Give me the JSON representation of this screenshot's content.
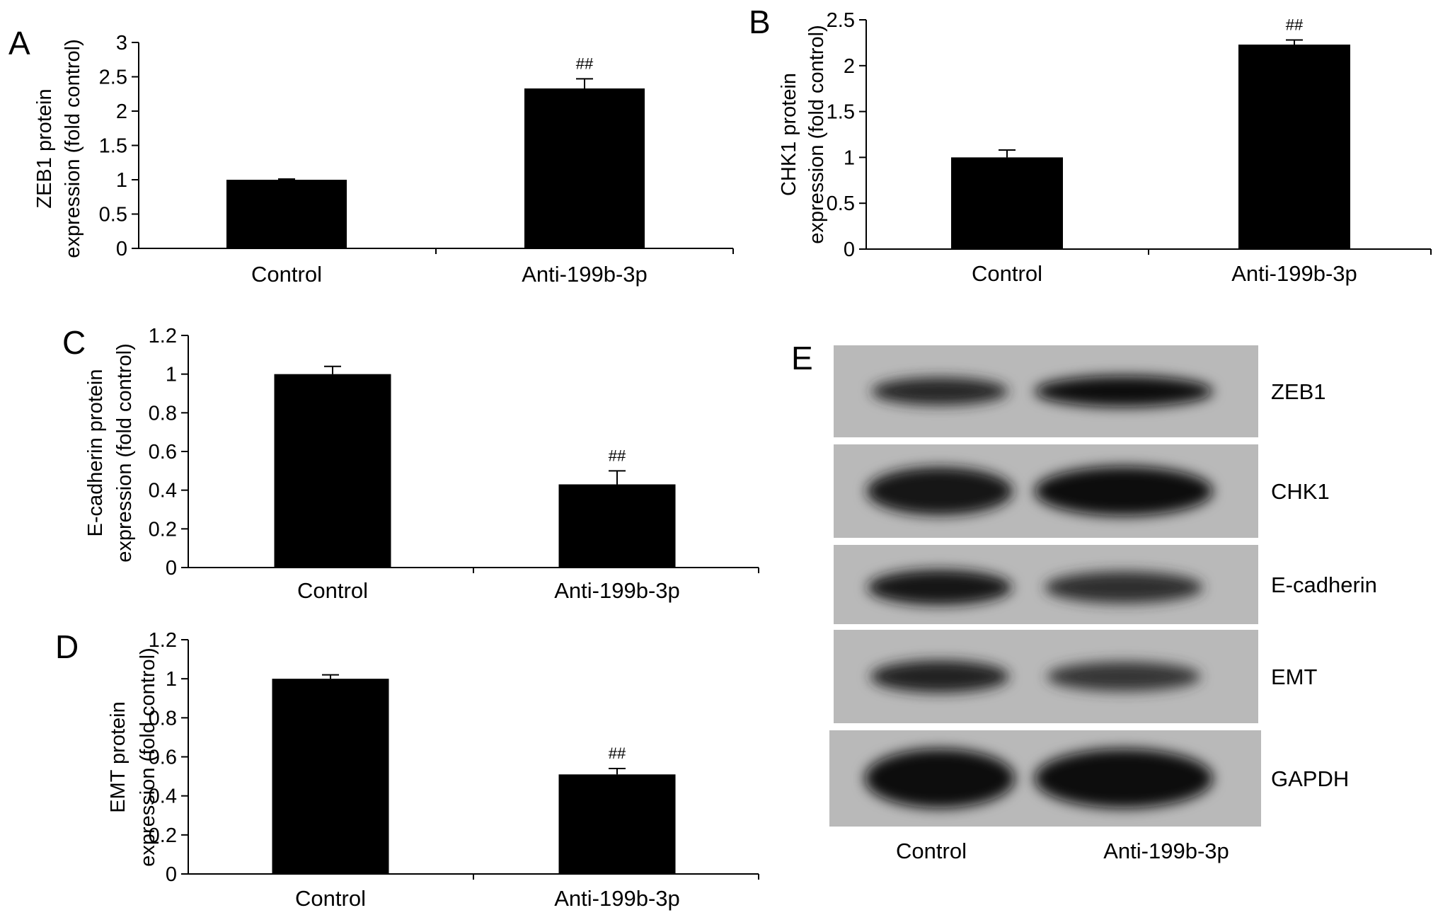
{
  "chart_data": [
    {
      "panel": "A",
      "type": "bar",
      "categories": [
        "Control",
        "Anti-199b-3p"
      ],
      "values": [
        1.0,
        2.33
      ],
      "errors": [
        0.01,
        0.14
      ],
      "annotations": [
        "",
        "##"
      ],
      "ylabel_lines": [
        "ZEB1 protein",
        "expression (fold control)"
      ],
      "ylim": [
        0,
        3
      ],
      "yticks": [
        0,
        0.5,
        1,
        1.5,
        2,
        2.5,
        3
      ],
      "ytick_labels": [
        "0",
        "0.5",
        "1",
        "1.5",
        "2",
        "2.5",
        "3"
      ],
      "grid": false
    },
    {
      "panel": "B",
      "type": "bar",
      "categories": [
        "Control",
        "Anti-199b-3p"
      ],
      "values": [
        1.0,
        2.23
      ],
      "errors": [
        0.08,
        0.05
      ],
      "annotations": [
        "",
        "##"
      ],
      "ylabel_lines": [
        "CHK1 protein",
        "expression (fold control)"
      ],
      "ylim": [
        0,
        2.5
      ],
      "yticks": [
        0,
        0.5,
        1,
        1.5,
        2,
        2.5
      ],
      "ytick_labels": [
        "0",
        "0.5",
        "1",
        "1.5",
        "2",
        "2.5"
      ],
      "grid": false
    },
    {
      "panel": "C",
      "type": "bar",
      "categories": [
        "Control",
        "Anti-199b-3p"
      ],
      "values": [
        1.0,
        0.43
      ],
      "errors": [
        0.04,
        0.07
      ],
      "annotations": [
        "",
        "##"
      ],
      "ylabel_lines": [
        "E-cadherin protein",
        "expression (fold control)"
      ],
      "ylim": [
        0,
        1.2
      ],
      "yticks": [
        0,
        0.2,
        0.4,
        0.6,
        0.8,
        1,
        1.2
      ],
      "ytick_labels": [
        "0",
        "0.2",
        "0.4",
        "0.6",
        "0.8",
        "1",
        "1.2"
      ],
      "grid": false
    },
    {
      "panel": "D",
      "type": "bar",
      "categories": [
        "Control",
        "Anti-199b-3p"
      ],
      "values": [
        1.0,
        0.51
      ],
      "errors": [
        0.02,
        0.03
      ],
      "annotations": [
        "",
        "##"
      ],
      "ylabel_lines": [
        "EMT protein",
        "expression (fold control)"
      ],
      "ylim": [
        0,
        1.2
      ],
      "yticks": [
        0,
        0.2,
        0.4,
        0.6,
        0.8,
        1,
        1.2
      ],
      "ytick_labels": [
        "0",
        "0.2",
        "0.4",
        "0.6",
        "0.8",
        "1",
        "1.2"
      ],
      "grid": false
    }
  ],
  "blot": {
    "panel": "E",
    "lanes": [
      "Control",
      "Anti-199b-3p"
    ],
    "rows": [
      {
        "label": "ZEB1",
        "band_intensity": [
          0.65,
          1.0
        ]
      },
      {
        "label": "CHK1",
        "band_intensity": [
          0.9,
          1.0
        ]
      },
      {
        "label": "E-cadherin",
        "band_intensity": [
          0.85,
          0.55
        ]
      },
      {
        "label": "EMT",
        "band_intensity": [
          0.7,
          0.45
        ]
      },
      {
        "label": "GAPDH",
        "band_intensity": [
          1.0,
          1.0
        ]
      }
    ]
  }
}
